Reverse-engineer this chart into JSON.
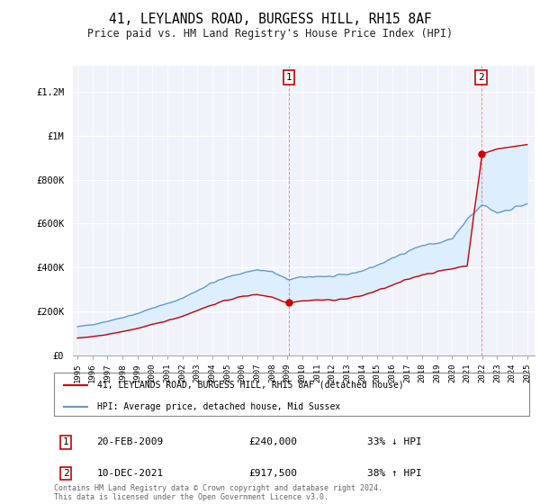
{
  "title": "41, LEYLANDS ROAD, BURGESS HILL, RH15 8AF",
  "subtitle": "Price paid vs. HM Land Registry's House Price Index (HPI)",
  "ylabel_ticks": [
    "£0",
    "£200K",
    "£400K",
    "£600K",
    "£800K",
    "£1M",
    "£1.2M"
  ],
  "ytick_values": [
    0,
    200000,
    400000,
    600000,
    800000,
    1000000,
    1200000
  ],
  "ylim": [
    0,
    1320000
  ],
  "xlim_start": 1994.7,
  "xlim_end": 2025.5,
  "hpi_color": "#6699cc",
  "hpi_fill_color": "#ddeeff",
  "price_color": "#cc0000",
  "marker_color": "#cc0000",
  "transaction1": {
    "date": "20-FEB-2009",
    "price": 240000,
    "label": "1",
    "year": 2009.12
  },
  "transaction2": {
    "date": "10-DEC-2021",
    "price": 917500,
    "label": "2",
    "year": 2021.93
  },
  "legend_property": "41, LEYLANDS ROAD, BURGESS HILL, RH15 8AF (detached house)",
  "legend_hpi": "HPI: Average price, detached house, Mid Sussex",
  "annotation1_date": "20-FEB-2009",
  "annotation1_price": "£240,000",
  "annotation1_hpi": "33% ↓ HPI",
  "annotation2_date": "10-DEC-2021",
  "annotation2_price": "£917,500",
  "annotation2_hpi": "38% ↑ HPI",
  "footnote": "Contains HM Land Registry data © Crown copyright and database right 2024.\nThis data is licensed under the Open Government Licence v3.0.",
  "background_color": "#f0f4fa"
}
